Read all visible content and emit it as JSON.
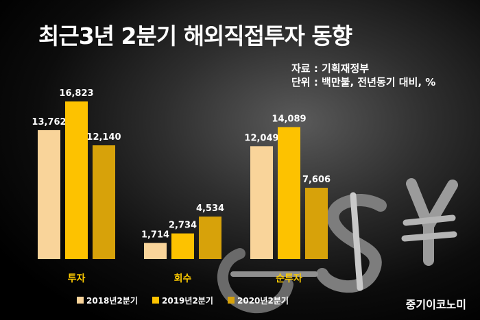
{
  "title": "최근3년 2분기 해외직접투자 동향",
  "source": "자료 : 기획재정부",
  "unit": "단위 : 백만불, 전년동기 대비, %",
  "brand": "중기이코노미",
  "colors": {
    "s2018": "#f9d49a",
    "s2019": "#fdc200",
    "s2020": "#d7a20a",
    "category_label": "#ffcc00",
    "value_label": "#ffffff"
  },
  "chart_data": {
    "type": "bar",
    "categories": [
      "투자",
      "회수",
      "순투자"
    ],
    "series": [
      {
        "name": "2018년2분기",
        "values": [
          13762,
          1714,
          12049
        ]
      },
      {
        "name": "2019년2분기",
        "values": [
          16823,
          2734,
          14089
        ]
      },
      {
        "name": "2020년2분기",
        "values": [
          12140,
          4534,
          7606
        ]
      }
    ],
    "value_labels": [
      [
        "13,762",
        "16,823",
        "12,140"
      ],
      [
        "1,714",
        "2,734",
        "4,534"
      ],
      [
        "12,049",
        "14,089",
        "7,606"
      ]
    ],
    "ylim": [
      0,
      18000
    ],
    "legend_position": "bottom-left",
    "grid": false
  }
}
